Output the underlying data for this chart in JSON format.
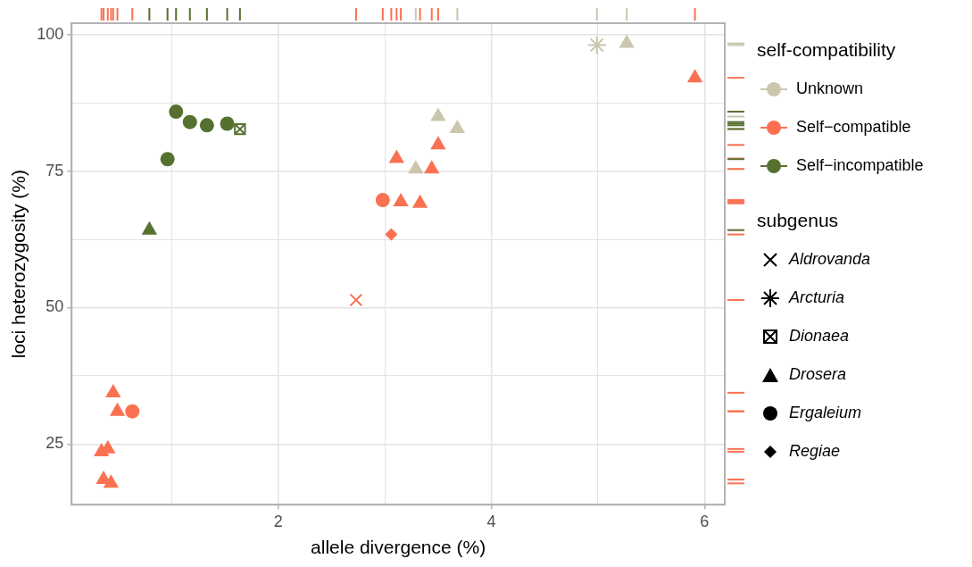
{
  "chart_data": {
    "type": "scatter",
    "xlabel": "allele divergence (%)",
    "ylabel": "loci heterozygosity (%)",
    "legend_title": [
      "self-compatibility",
      "subgenus"
    ],
    "xlim": [
      0.06,
      6.19
    ],
    "xticks": [
      {
        "value": 1,
        "label": null
      },
      2,
      {
        "value": 3,
        "label": null
      },
      4,
      {
        "value": 5,
        "label": null
      },
      6
    ],
    "ylim": [
      13.9,
      102.1
    ],
    "yticks": [
      25,
      {
        "value": 37.5,
        "label": null
      },
      50,
      {
        "value": 62.5,
        "label": null
      },
      75,
      {
        "value": 87.5,
        "label": null
      },
      100
    ],
    "grid": true,
    "legend": "right",
    "series": [
      {
        "name": "Unknown",
        "color": "#cbc6ae",
        "x": [
          3.29,
          3.5,
          3.68,
          4.99,
          5.27
        ],
        "values": [
          75.4,
          85.0,
          82.8,
          98.1,
          98.4
        ],
        "marker": [
          "triangle",
          "triangle",
          "triangle",
          "star",
          "triangle"
        ]
      },
      {
        "name": "Self−compatible",
        "color": "#fa7152",
        "x": [
          0.34,
          0.36,
          0.4,
          0.43,
          0.45,
          0.49,
          0.63,
          2.73,
          2.98,
          3.06,
          3.11,
          3.15,
          3.33,
          3.44,
          3.5,
          5.91
        ],
        "values": [
          23.6,
          18.5,
          24.1,
          17.8,
          34.4,
          31.0,
          31.0,
          51.4,
          69.7,
          63.4,
          77.3,
          69.4,
          69.1,
          75.4,
          79.8,
          92.1
        ],
        "marker": [
          "triangle",
          "triangle",
          "triangle",
          "triangle",
          "triangle",
          "triangle",
          "circle",
          "cross",
          "circle",
          "diamond",
          "triangle",
          "triangle",
          "triangle",
          "triangle",
          "triangle",
          "triangle"
        ]
      },
      {
        "name": "Self−incompatible",
        "color": "#56712f",
        "x": [
          0.79,
          0.96,
          1.04,
          1.17,
          1.33,
          1.52,
          1.64
        ],
        "values": [
          64.2,
          77.2,
          85.9,
          84.0,
          83.4,
          83.7,
          82.7
        ],
        "marker": [
          "triangle",
          "circle",
          "circle",
          "circle",
          "circle",
          "circle",
          "square"
        ]
      },
      {
        "name": "Aldrovanda",
        "color": "#000000",
        "marker": "cross"
      },
      {
        "name": "Arcturia",
        "color": "#000000",
        "marker": "star"
      },
      {
        "name": "Dionaea",
        "color": "#000000",
        "marker": "square"
      },
      {
        "name": "Drosera",
        "color": "#000000",
        "marker": "triangle"
      },
      {
        "name": "Ergaleium",
        "color": "#000000",
        "marker": "circle"
      },
      {
        "name": "Regiae",
        "color": "#000000",
        "marker": "diamond"
      }
    ]
  }
}
